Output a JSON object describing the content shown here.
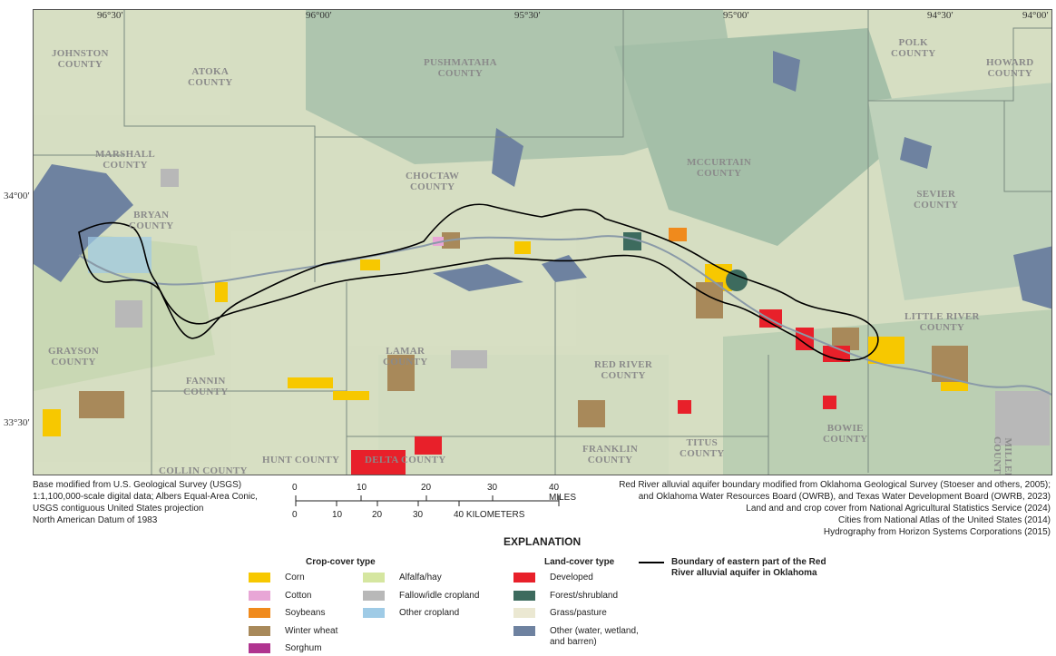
{
  "map": {
    "lon_labels": [
      "96°30′",
      "96°00′",
      "95°30′",
      "95°00′",
      "94°30′",
      "94°00′"
    ],
    "lat_labels": [
      "34°00′",
      "33°30′"
    ],
    "counties": [
      {
        "name": "JOHNSTON\nCOUNTY"
      },
      {
        "name": "ATOKA\nCOUNTY"
      },
      {
        "name": "PUSHMATAHA\nCOUNTY"
      },
      {
        "name": "POLK\nCOUNTY"
      },
      {
        "name": "HOWARD\nCOUNTY"
      },
      {
        "name": "MARSHALL\nCOUNTY"
      },
      {
        "name": "CHOCTAW\nCOUNTY"
      },
      {
        "name": "MCCURTAIN\nCOUNTY"
      },
      {
        "name": "SEVIER\nCOUNTY"
      },
      {
        "name": "BRYAN\nCOUNTY"
      },
      {
        "name": "LITTLE RIVER\nCOUNTY"
      },
      {
        "name": "GRAYSON\nCOUNTY"
      },
      {
        "name": "LAMAR\nCOUNTY"
      },
      {
        "name": "RED RIVER\nCOUNTY"
      },
      {
        "name": "FANNIN\nCOUNTY"
      },
      {
        "name": "BOWIE\nCOUNTY"
      },
      {
        "name": "TITUS\nCOUNTY"
      },
      {
        "name": "FRANKLIN\nCOUNTY"
      },
      {
        "name": "HUNT COUNTY"
      },
      {
        "name": "DELTA COUNTY"
      },
      {
        "name": "COLLIN COUNTY"
      },
      {
        "name": "MILLER COUNTY"
      }
    ]
  },
  "sources_left": [
    "Base modified from U.S. Geological Survey (USGS)",
    "1:1,100,000-scale digital data; Albers Equal-Area Conic,",
    "USGS contiguous United States projection",
    "North American Datum of 1983"
  ],
  "sources_right": [
    "Red River alluvial aquifer boundary modified from Oklahoma Geological Survey (Stoeser and others, 2005);",
    "and Oklahoma Water Resources Board (OWRB), and Texas Water Development Board (OWRB, 2023)",
    "Land and and crop cover from National Agricultural Statistics Service (2024)",
    "Cities from National Atlas of the United States (2014)",
    "Hydrography from Horizon Systems Corporations (2015)"
  ],
  "scale": {
    "miles_ticks": [
      "0",
      "10",
      "20",
      "30",
      "40 MILES"
    ],
    "km_ticks": [
      "0",
      "10",
      "20",
      "30",
      "40 KILOMETERS"
    ]
  },
  "legend": {
    "title": "EXPLANATION",
    "crop_heading": "Crop-cover type",
    "land_heading": "Land-cover type",
    "crop_col1": [
      {
        "label": "Corn",
        "color": "#f7c800"
      },
      {
        "label": "Cotton",
        "color": "#e8a6d6"
      },
      {
        "label": "Soybeans",
        "color": "#f08a1c"
      },
      {
        "label": "Winter wheat",
        "color": "#a8895a"
      },
      {
        "label": "Sorghum",
        "color": "#b0348f"
      }
    ],
    "crop_col2": [
      {
        "label": "Alfalfa/hay",
        "color": "#d5e6a0"
      },
      {
        "label": "Fallow/idle cropland",
        "color": "#b8b8b8"
      },
      {
        "label": "Other cropland",
        "color": "#9fcbe6"
      }
    ],
    "land": [
      {
        "label": "Developed",
        "color": "#e8202a"
      },
      {
        "label": "Forest/shrubland",
        "color": "#3d6b5e"
      },
      {
        "label": "Grass/pasture",
        "color": "#ebe8d2"
      },
      {
        "label": "Other (water, wetland,\n  and barren)",
        "color": "#6e82a0"
      }
    ],
    "boundary_label": "Boundary of eastern part of the Red\nRiver alluvial aquifer in Oklahoma"
  }
}
